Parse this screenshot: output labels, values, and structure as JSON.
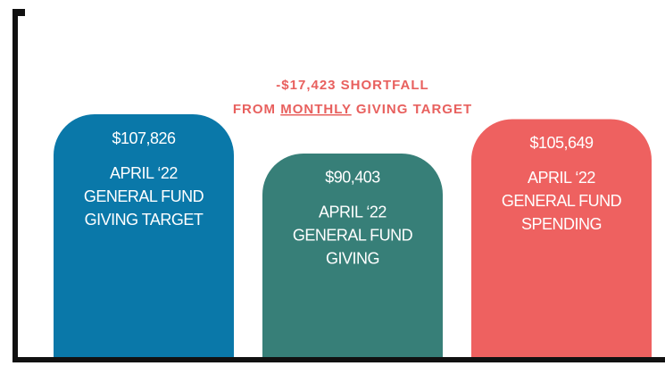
{
  "chart_data": {
    "type": "bar",
    "annotation": {
      "line1": "-$17,423 SHORTFALL",
      "line2": [
        "FROM",
        "MONTHLY",
        "GIVING TARGET"
      ]
    },
    "categories": [
      [
        "APRIL ‘22",
        "GENERAL FUND",
        "GIVING TARGET"
      ],
      [
        "APRIL ‘22",
        "GENERAL FUND",
        "GIVING"
      ],
      [
        "APRIL ‘22",
        "GENERAL FUND",
        "SPENDING"
      ]
    ],
    "values": [
      107826,
      90403,
      105649
    ],
    "value_labels": [
      "$107,826",
      "$90,403",
      "$105,649"
    ],
    "colors": [
      "#0a78a9",
      "#377f78",
      "#ee6160"
    ]
  }
}
